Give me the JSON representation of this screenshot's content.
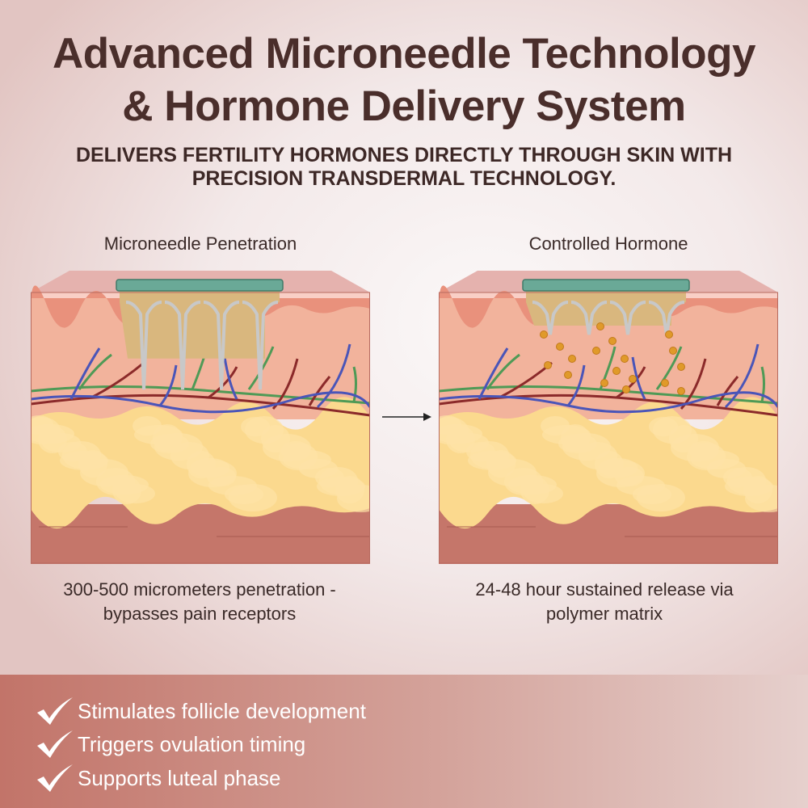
{
  "header": {
    "title_line1": "Advanced Microneedle Technology",
    "title_line2": "& Hormone Delivery System",
    "subtitle_line1": "DELIVERS FERTILITY HORMONES DIRECTLY THROUGH SKIN WITH",
    "subtitle_line2": "PRECISION TRANSDERMAL TECHNOLOGY."
  },
  "panels": [
    {
      "label": "Microneedle Penetration",
      "caption_line1": "300-500 micrometers penetration -",
      "caption_line2": "bypasses pain receptors"
    },
    {
      "label": "Controlled Hormone",
      "caption_line1": "24-48 hour sustained release via",
      "caption_line2": "polymer matrix"
    }
  ],
  "arrow_icon": "right-arrow-icon",
  "benefits": [
    {
      "icon": "checkmark-icon",
      "label": "Stimulates follicle development"
    },
    {
      "icon": "checkmark-icon",
      "label": "Triggers ovulation timing"
    },
    {
      "icon": "checkmark-icon",
      "label": "Supports luteal phase"
    }
  ],
  "colors": {
    "title": "#4a2e2b",
    "band": "#c27469",
    "patch": "#6aa997",
    "fat": "#fbd98e",
    "dermis": "#f2b39c",
    "artery": "#8b2a2a",
    "vein": "#4a55b8",
    "nerve": "#4f9a56",
    "hormone": "#e09a2a"
  }
}
